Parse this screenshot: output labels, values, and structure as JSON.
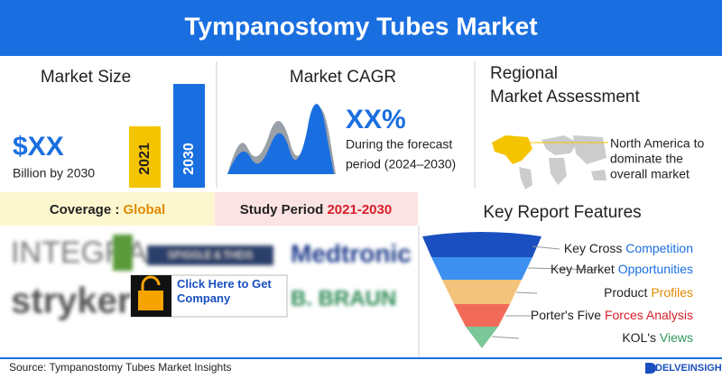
{
  "header": {
    "title": "Tympanostomy Tubes Market"
  },
  "market_size": {
    "title": "Market Size",
    "value": "$XX",
    "caption": "Billion by 2030",
    "bar_labels": [
      "2021",
      "2030"
    ]
  },
  "cagr": {
    "title": "Market CAGR",
    "value": "XX%",
    "caption_lines": [
      "During the forecast",
      "period (2024–2030)"
    ]
  },
  "regional": {
    "title_lines": [
      "Regional",
      "Market Assessment"
    ],
    "caption_lines": [
      "North America to",
      "dominate the",
      "overall market"
    ]
  },
  "coverage": {
    "label": "Coverage : ",
    "value": "Global"
  },
  "study_period": {
    "label": "Study Period ",
    "value": "2021-2030"
  },
  "key_features": {
    "title": "Key Report Features",
    "items": [
      {
        "text": "Key Cross ",
        "highlight": "Competition"
      },
      {
        "text": "Key Market ",
        "highlight": "Opportunities"
      },
      {
        "text": "Product ",
        "highlight": "Profiles"
      },
      {
        "text": "Porter's Five ",
        "highlight": "Forces Analysis"
      },
      {
        "text": "KOL's ",
        "highlight": "Views"
      }
    ]
  },
  "companies": [
    "INTEGRA",
    "SPIGGLE & THEIS",
    "Medtronic",
    "stryker",
    "B. BRAUN"
  ],
  "cta": "Click Here to Get Company",
  "footer": {
    "source": "Source: Tympanostomy Tubes Market Insights",
    "brand": "DELVEINSIGHT"
  }
}
